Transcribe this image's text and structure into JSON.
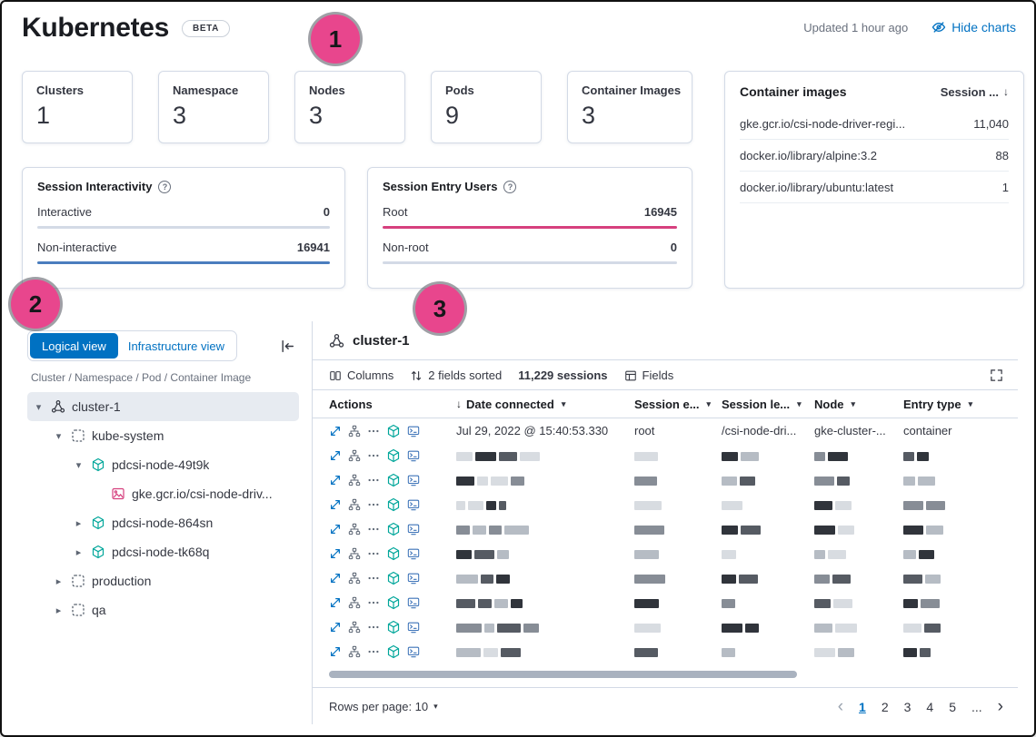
{
  "annotations": {
    "one": "1",
    "two": "2",
    "three": "3"
  },
  "header": {
    "title": "Kubernetes",
    "beta_badge": "BETA",
    "updated": "Updated 1 hour ago",
    "hide_charts": "Hide charts"
  },
  "stats": [
    {
      "label": "Clusters",
      "value": "1"
    },
    {
      "label": "Namespace",
      "value": "3"
    },
    {
      "label": "Nodes",
      "value": "3"
    },
    {
      "label": "Pods",
      "value": "9"
    },
    {
      "label": "Container Images",
      "value": "3"
    }
  ],
  "container_images_panel": {
    "title": "Container images",
    "sort_column": "Session ...",
    "sort_icon": "↓",
    "rows": [
      {
        "name": "gke.gcr.io/csi-node-driver-regi...",
        "value": "11,040"
      },
      {
        "name": "docker.io/library/alpine:3.2",
        "value": "88"
      },
      {
        "name": "docker.io/library/ubuntu:latest",
        "value": "1"
      }
    ]
  },
  "session_interactivity": {
    "title": "Session Interactivity",
    "metrics": [
      {
        "label": "Interactive",
        "value": "0",
        "bar_color": "#d3dae6"
      },
      {
        "label": "Non-interactive",
        "value": "16941",
        "bar_color": "#4a7dbe"
      }
    ]
  },
  "session_entry_users": {
    "title": "Session Entry Users",
    "metrics": [
      {
        "label": "Root",
        "value": "16945",
        "bar_color": "#d6407e"
      },
      {
        "label": "Non-root",
        "value": "0",
        "bar_color": "#d3dae6"
      }
    ]
  },
  "sidebar": {
    "logical_view": "Logical view",
    "infrastructure_view": "Infrastructure view",
    "breadcrumb": "Cluster / Namespace / Pod / Container Image",
    "tree": [
      {
        "label": "cluster-1",
        "icon": "cluster",
        "chevron": "down",
        "level": 0,
        "selected": true
      },
      {
        "label": "kube-system",
        "icon": "namespace",
        "chevron": "down",
        "level": 1,
        "selected": false
      },
      {
        "label": "pdcsi-node-49t9k",
        "icon": "pod",
        "chevron": "down",
        "level": 2,
        "selected": false
      },
      {
        "label": "gke.gcr.io/csi-node-driv...",
        "icon": "image",
        "chevron": "none",
        "level": 3,
        "selected": false
      },
      {
        "label": "pdcsi-node-864sn",
        "icon": "pod",
        "chevron": "right",
        "level": 2,
        "selected": false
      },
      {
        "label": "pdcsi-node-tk68q",
        "icon": "pod",
        "chevron": "right",
        "level": 2,
        "selected": false
      },
      {
        "label": "production",
        "icon": "namespace",
        "chevron": "right",
        "level": 1,
        "selected": false
      },
      {
        "label": "qa",
        "icon": "namespace",
        "chevron": "right",
        "level": 1,
        "selected": false
      }
    ]
  },
  "main": {
    "cluster_title": "cluster-1",
    "toolbar": {
      "columns": "Columns",
      "sorted": "2 fields sorted",
      "sessions": "11,229 sessions",
      "fields": "Fields"
    },
    "table": {
      "headers": [
        "Actions",
        "Date connected",
        "Session e...",
        "Session le...",
        "Node",
        "Entry type"
      ],
      "first_row": {
        "date": "Jul 29, 2022 @ 15:40:53.330",
        "session_entry": "root",
        "session_leader": "/csi-node-dri...",
        "node": "gke-cluster-...",
        "entry_type": "container"
      },
      "redacted_rows": 9
    },
    "footer": {
      "rows_per_page": "Rows per page: 10",
      "pages": [
        "1",
        "2",
        "3",
        "4",
        "5"
      ],
      "ellipsis": "...",
      "active_page": "1"
    }
  },
  "colors": {
    "primary_blue": "#0071c2",
    "bar_blue": "#4a7dbe",
    "bar_pink": "#d6407e",
    "track_gray": "#d3dae6",
    "annotation_pink": "#e8468d",
    "pod_teal": "#00a69a"
  },
  "icons": {
    "hide_charts": "eye-slash",
    "sort_desc": "↓",
    "chevron_down": "▾",
    "chevron_right": "▸",
    "previous_page": "‹",
    "next_page": "›"
  }
}
